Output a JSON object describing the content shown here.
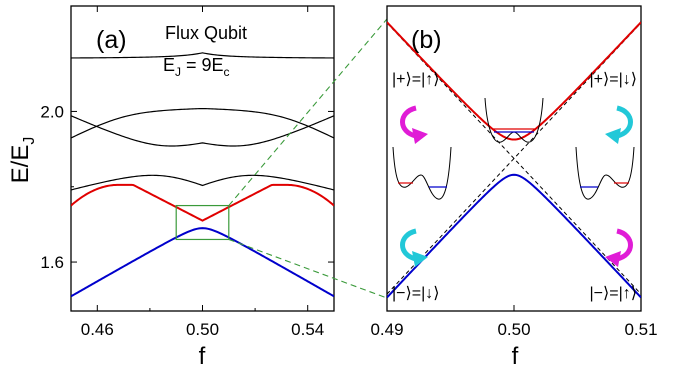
{
  "chart_data": [
    {
      "type": "line",
      "panel_label": "(a)",
      "annotation_title": "Flux Qubit",
      "annotation_param": "E_J = 9E_c",
      "annotation_param_parts": {
        "e": "E",
        "j": "J",
        "eq": " = 9E",
        "c": "c"
      },
      "xlabel": "f",
      "ylabel": "E/E_J",
      "ylabel_parts": {
        "main": "E/E",
        "sub": "J"
      },
      "xlim": [
        0.45,
        0.55
      ],
      "ylim": [
        1.47,
        2.28
      ],
      "xticks": [
        "0.46",
        "0.50",
        "0.54"
      ],
      "yticks": [
        "1.6",
        "2.0"
      ],
      "grid": false,
      "inset_box": {
        "x": [
          0.49,
          0.51
        ],
        "y": [
          1.66,
          1.75
        ],
        "color": "#3a9a3a"
      },
      "series": [
        {
          "color": "#0000cc",
          "x": [
            0.45,
            0.5,
            0.55
          ],
          "y": [
            1.49,
            1.69,
            1.49
          ],
          "bend": 0.011
        },
        {
          "color": "#e00000",
          "x": [
            0.45,
            0.468,
            0.5,
            0.532,
            0.55
          ],
          "y": [
            1.75,
            1.8,
            1.71,
            1.8,
            1.75
          ],
          "shape": "mexican-hat"
        },
        {
          "color": "#000000",
          "x": [
            0.45,
            0.5,
            0.55
          ],
          "y": [
            1.8,
            1.9,
            1.8
          ],
          "kind": "lower-of-crossing",
          "other": [
            1.98,
            1.82,
            1.98
          ],
          "gap": 0.08
        },
        {
          "color": "#000000",
          "x": [
            0.45,
            0.5,
            0.55
          ],
          "y": [
            1.98,
            1.92,
            1.98
          ],
          "kind": "upper-of-crossing",
          "other": [
            1.8,
            1.9,
            1.8
          ],
          "gap": 0.08
        },
        {
          "color": "#000000",
          "x": [
            0.45,
            0.5,
            0.55
          ],
          "y": [
            2.01,
            1.98,
            2.01
          ],
          "kind": "lower-of-crossing-2",
          "other": [
            1.94,
            2.13,
            1.94
          ],
          "gap": 0.04
        },
        {
          "color": "#000000",
          "x": [
            0.45,
            0.5,
            0.55
          ],
          "y": [
            2.135,
            2.135,
            2.135
          ],
          "kind": "top-flat"
        }
      ]
    },
    {
      "type": "line",
      "panel_label": "(b)",
      "xlabel": "f",
      "ylabel": "",
      "xlim": [
        0.49,
        0.51
      ],
      "ylim": [
        1.66,
        1.75
      ],
      "xticks": [
        "0.49",
        "0.50",
        "0.51"
      ],
      "grid": false,
      "series": [
        {
          "color": "#e00000",
          "x": [
            0.49,
            0.5,
            0.51
          ],
          "y": [
            1.745,
            1.709,
            1.745
          ],
          "gap_from_diabatic": 0.0058
        },
        {
          "color": "#0000cc",
          "x": [
            0.49,
            0.5,
            0.51
          ],
          "y": [
            1.665,
            1.7,
            1.665
          ],
          "gap_from_diabatic": 0.004
        },
        {
          "color": "#000000",
          "dashed": true,
          "x": [
            0.49,
            0.51
          ],
          "y": [
            1.745,
            1.665
          ]
        },
        {
          "color": "#000000",
          "dashed": true,
          "x": [
            0.49,
            0.51
          ],
          "y": [
            1.665,
            1.745
          ]
        }
      ],
      "state_labels": {
        "top_left": "|+⟩=|↑⟩",
        "top_right": "|+⟩=|↓⟩",
        "bottom_left": "|−⟩=|↓⟩",
        "bottom_right": "|−⟩=|↑⟩"
      },
      "rotation_arrows": {
        "magenta": "#e01cd6",
        "cyan": "#22c8d8"
      }
    }
  ]
}
